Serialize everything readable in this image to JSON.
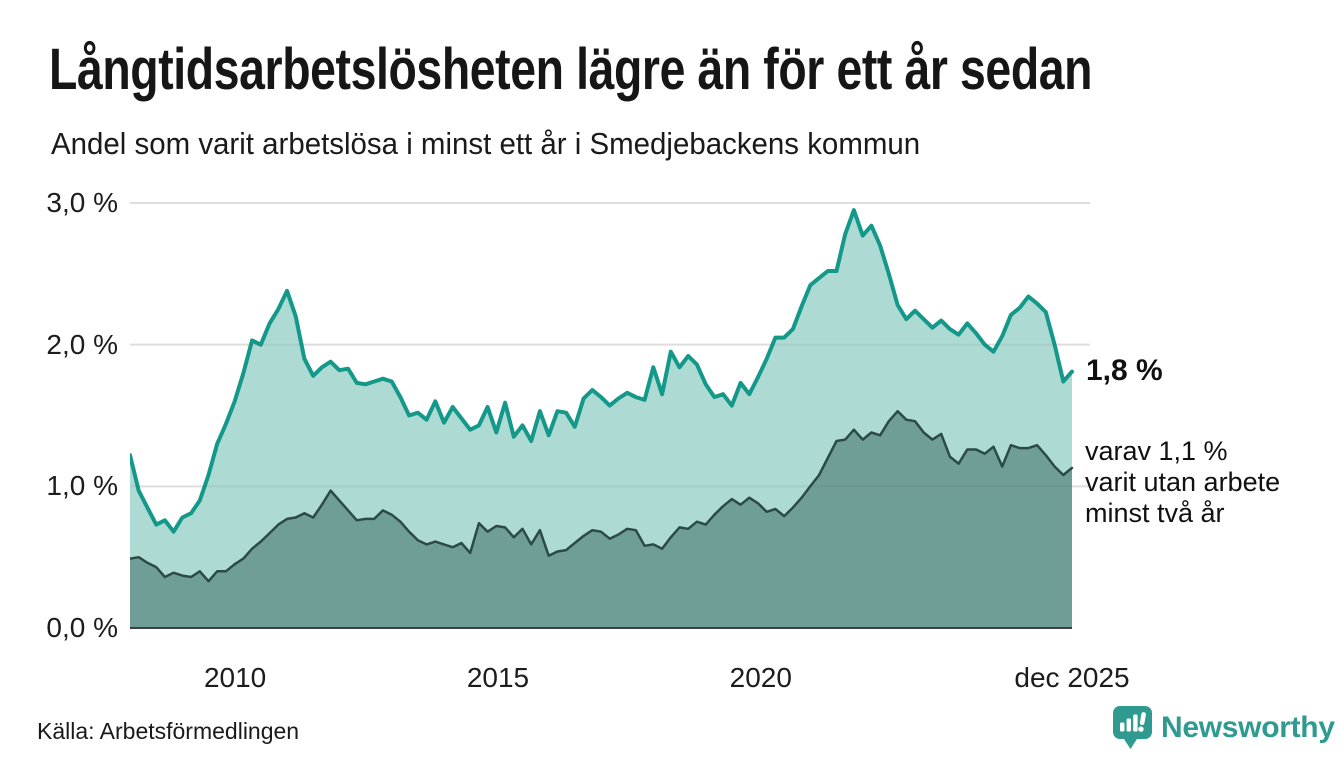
{
  "header": {
    "title": "Långtidsarbetslösheten lägre än för ett år sedan",
    "subtitle": "Andel som varit arbetslösa i minst ett år i Smedjebackens kommun"
  },
  "annotations": {
    "total_end_label": "1,8 %",
    "subset_end_label": "varav 1,1 %\nvarit utan arbete\nminst två år"
  },
  "footer": {
    "source": "Källa: Arbetsförmedlingen",
    "logo_text": "Newsworthy"
  },
  "colors": {
    "total_line": "#139889",
    "total_fill": "#addbd3",
    "subset_line": "#2c4b47",
    "subset_fill": "#6f9e97",
    "gridline": "#ededed",
    "gridline_overlay": "rgba(80,80,80,0.09)",
    "baseline": "#3f3f3f",
    "logo_teal": "#2f9a90"
  },
  "chart_data": {
    "type": "area",
    "title": "Långtidsarbetslösheten lägre än för ett år sedan",
    "subtitle": "Andel som varit arbetslösa i minst ett år i Smedjebackens kommun",
    "unit": "%",
    "x_start_year": 2008.0,
    "x_end_year": 2025.92,
    "ylim": [
      0,
      3.0
    ],
    "grid": true,
    "y_ticks": [
      {
        "label": "0,0 %",
        "value": 0.0
      },
      {
        "label": "1,0 %",
        "value": 1.0
      },
      {
        "label": "2,0 %",
        "value": 2.0
      },
      {
        "label": "3,0 %",
        "value": 3.0
      }
    ],
    "x_ticks": [
      {
        "label": "2010",
        "year": 2010.0
      },
      {
        "label": "2015",
        "year": 2015.0
      },
      {
        "label": "2020",
        "year": 2020.0
      },
      {
        "label": "dec 2025",
        "year": 2025.92
      }
    ],
    "series": [
      {
        "name": "Andel arbetslösa minst ett år",
        "end_value_label": "1,8 %",
        "values": [
          1.22,
          0.97,
          0.85,
          0.73,
          0.76,
          0.68,
          0.78,
          0.81,
          0.9,
          1.08,
          1.3,
          1.44,
          1.6,
          1.8,
          2.03,
          2.0,
          2.15,
          2.25,
          2.38,
          2.2,
          1.9,
          1.78,
          1.84,
          1.88,
          1.82,
          1.83,
          1.73,
          1.72,
          1.74,
          1.76,
          1.74,
          1.63,
          1.5,
          1.52,
          1.47,
          1.6,
          1.45,
          1.56,
          1.48,
          1.4,
          1.43,
          1.56,
          1.38,
          1.59,
          1.35,
          1.43,
          1.32,
          1.53,
          1.36,
          1.53,
          1.52,
          1.42,
          1.62,
          1.68,
          1.63,
          1.57,
          1.62,
          1.66,
          1.63,
          1.61,
          1.84,
          1.65,
          1.95,
          1.84,
          1.92,
          1.86,
          1.72,
          1.63,
          1.65,
          1.57,
          1.73,
          1.65,
          1.77,
          1.9,
          2.05,
          2.05,
          2.11,
          2.27,
          2.42,
          2.47,
          2.52,
          2.52,
          2.78,
          2.95,
          2.77,
          2.84,
          2.7,
          2.5,
          2.28,
          2.18,
          2.24,
          2.18,
          2.12,
          2.17,
          2.11,
          2.07,
          2.15,
          2.08,
          2.0,
          1.95,
          2.06,
          2.21,
          2.26,
          2.34,
          2.29,
          2.23,
          2.0,
          1.74,
          1.81
        ]
      },
      {
        "name": "varav arbetslösa minst två år",
        "end_value_label": "1,1 %",
        "values": [
          0.49,
          0.5,
          0.46,
          0.43,
          0.36,
          0.39,
          0.37,
          0.36,
          0.4,
          0.33,
          0.4,
          0.4,
          0.45,
          0.49,
          0.56,
          0.61,
          0.67,
          0.73,
          0.77,
          0.78,
          0.81,
          0.78,
          0.87,
          0.97,
          0.9,
          0.83,
          0.76,
          0.77,
          0.77,
          0.83,
          0.8,
          0.75,
          0.68,
          0.62,
          0.59,
          0.61,
          0.59,
          0.57,
          0.6,
          0.53,
          0.74,
          0.68,
          0.72,
          0.71,
          0.64,
          0.7,
          0.59,
          0.69,
          0.51,
          0.54,
          0.55,
          0.6,
          0.65,
          0.69,
          0.68,
          0.63,
          0.66,
          0.7,
          0.69,
          0.58,
          0.59,
          0.56,
          0.64,
          0.71,
          0.7,
          0.75,
          0.73,
          0.8,
          0.86,
          0.91,
          0.87,
          0.92,
          0.88,
          0.82,
          0.84,
          0.79,
          0.85,
          0.92,
          1.0,
          1.08,
          1.2,
          1.32,
          1.33,
          1.4,
          1.33,
          1.38,
          1.36,
          1.46,
          1.53,
          1.47,
          1.46,
          1.38,
          1.33,
          1.37,
          1.21,
          1.16,
          1.26,
          1.26,
          1.23,
          1.28,
          1.14,
          1.29,
          1.27,
          1.27,
          1.29,
          1.22,
          1.14,
          1.08,
          1.13
        ]
      }
    ]
  }
}
